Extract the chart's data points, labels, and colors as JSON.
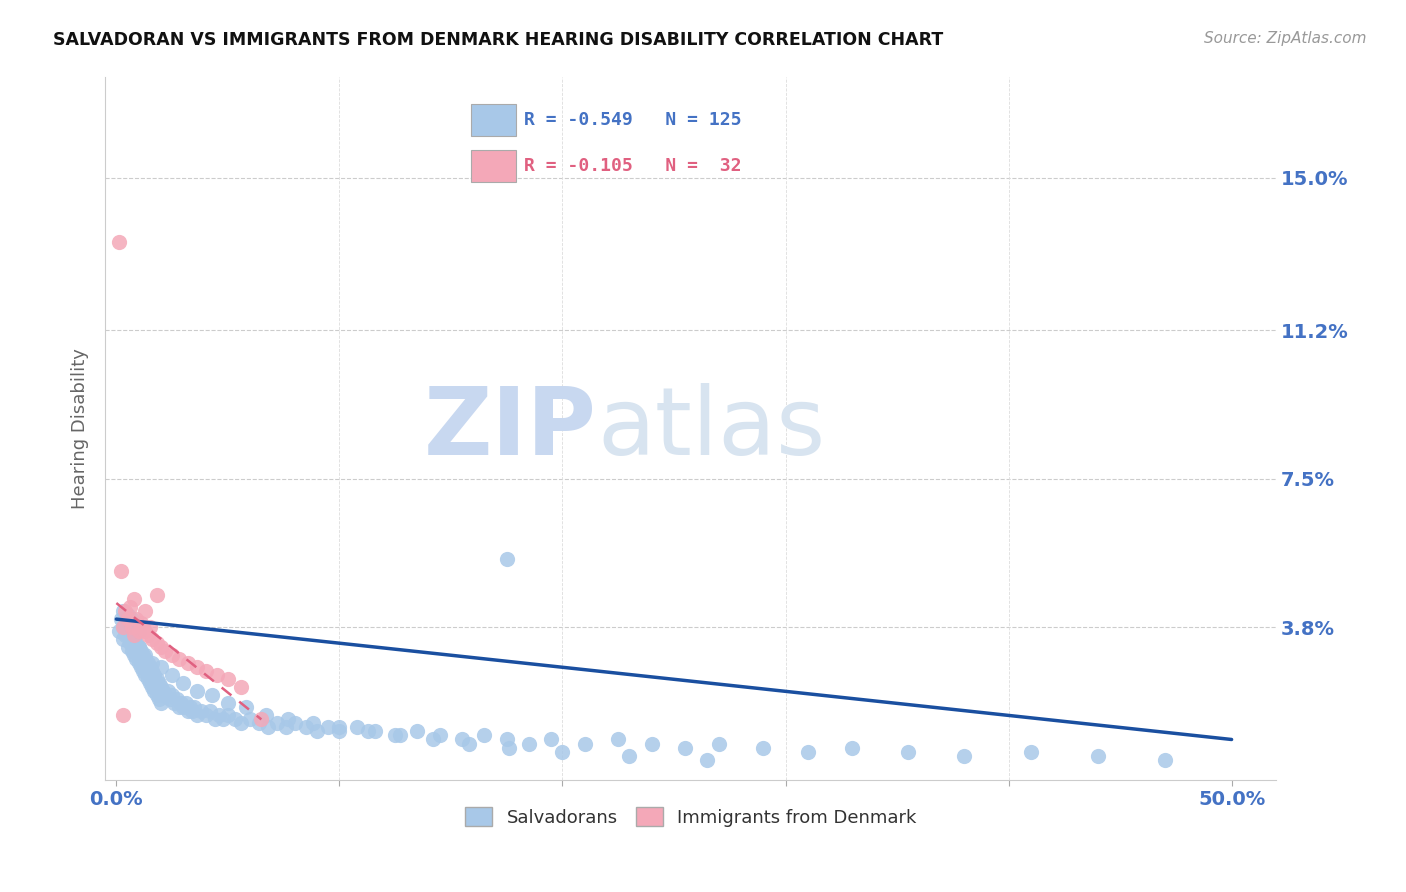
{
  "title": "SALVADORAN VS IMMIGRANTS FROM DENMARK HEARING DISABILITY CORRELATION CHART",
  "source": "Source: ZipAtlas.com",
  "ylabel": "Hearing Disability",
  "ytick_labels": [
    "15.0%",
    "11.2%",
    "7.5%",
    "3.8%"
  ],
  "ytick_values": [
    0.15,
    0.112,
    0.075,
    0.038
  ],
  "xtick_values": [
    0.0,
    0.1,
    0.2,
    0.3,
    0.4,
    0.5
  ],
  "xtick_show": [
    0.0,
    0.5
  ],
  "xlim": [
    -0.005,
    0.52
  ],
  "ylim": [
    0.0,
    0.175
  ],
  "legend_blue_r": "-0.549",
  "legend_blue_n": "125",
  "legend_pink_r": "-0.105",
  "legend_pink_n": " 32",
  "color_blue": "#A8C8E8",
  "color_pink": "#F4A8B8",
  "color_blue_line": "#1A4FA0",
  "color_pink_line": "#E06080",
  "color_axis_label": "#4472C4",
  "watermark_zip": "#C8D8F0",
  "watermark_atlas": "#D8E4F0",
  "blue_scatter_x": [
    0.001,
    0.002,
    0.003,
    0.003,
    0.004,
    0.004,
    0.005,
    0.005,
    0.005,
    0.006,
    0.006,
    0.007,
    0.007,
    0.007,
    0.008,
    0.008,
    0.008,
    0.009,
    0.009,
    0.01,
    0.01,
    0.01,
    0.011,
    0.011,
    0.012,
    0.012,
    0.013,
    0.013,
    0.014,
    0.014,
    0.015,
    0.015,
    0.016,
    0.016,
    0.017,
    0.017,
    0.018,
    0.018,
    0.019,
    0.019,
    0.02,
    0.02,
    0.021,
    0.022,
    0.023,
    0.024,
    0.025,
    0.026,
    0.027,
    0.028,
    0.029,
    0.03,
    0.031,
    0.032,
    0.033,
    0.034,
    0.035,
    0.036,
    0.038,
    0.04,
    0.042,
    0.044,
    0.046,
    0.048,
    0.05,
    0.053,
    0.056,
    0.06,
    0.064,
    0.068,
    0.072,
    0.076,
    0.08,
    0.085,
    0.09,
    0.095,
    0.1,
    0.108,
    0.116,
    0.125,
    0.135,
    0.145,
    0.155,
    0.165,
    0.175,
    0.185,
    0.195,
    0.21,
    0.225,
    0.24,
    0.255,
    0.27,
    0.29,
    0.31,
    0.33,
    0.355,
    0.38,
    0.41,
    0.44,
    0.47,
    0.003,
    0.005,
    0.007,
    0.01,
    0.013,
    0.016,
    0.02,
    0.025,
    0.03,
    0.036,
    0.043,
    0.05,
    0.058,
    0.067,
    0.077,
    0.088,
    0.1,
    0.113,
    0.127,
    0.142,
    0.158,
    0.176,
    0.2,
    0.23,
    0.265,
    0.175
  ],
  "blue_scatter_y": [
    0.037,
    0.04,
    0.035,
    0.042,
    0.036,
    0.038,
    0.033,
    0.037,
    0.041,
    0.034,
    0.038,
    0.032,
    0.036,
    0.04,
    0.031,
    0.035,
    0.038,
    0.03,
    0.034,
    0.029,
    0.033,
    0.037,
    0.028,
    0.032,
    0.027,
    0.031,
    0.026,
    0.03,
    0.025,
    0.029,
    0.024,
    0.028,
    0.023,
    0.027,
    0.022,
    0.026,
    0.021,
    0.025,
    0.02,
    0.024,
    0.019,
    0.023,
    0.022,
    0.021,
    0.022,
    0.02,
    0.021,
    0.019,
    0.02,
    0.018,
    0.019,
    0.018,
    0.019,
    0.017,
    0.018,
    0.017,
    0.018,
    0.016,
    0.017,
    0.016,
    0.017,
    0.015,
    0.016,
    0.015,
    0.016,
    0.015,
    0.014,
    0.015,
    0.014,
    0.013,
    0.014,
    0.013,
    0.014,
    0.013,
    0.012,
    0.013,
    0.012,
    0.013,
    0.012,
    0.011,
    0.012,
    0.011,
    0.01,
    0.011,
    0.01,
    0.009,
    0.01,
    0.009,
    0.01,
    0.009,
    0.008,
    0.009,
    0.008,
    0.007,
    0.008,
    0.007,
    0.006,
    0.007,
    0.006,
    0.005,
    0.038,
    0.036,
    0.034,
    0.033,
    0.031,
    0.029,
    0.028,
    0.026,
    0.024,
    0.022,
    0.021,
    0.019,
    0.018,
    0.016,
    0.015,
    0.014,
    0.013,
    0.012,
    0.011,
    0.01,
    0.009,
    0.008,
    0.007,
    0.006,
    0.005,
    0.055
  ],
  "pink_scatter_x": [
    0.001,
    0.002,
    0.003,
    0.004,
    0.005,
    0.006,
    0.007,
    0.008,
    0.009,
    0.01,
    0.011,
    0.012,
    0.013,
    0.014,
    0.015,
    0.016,
    0.018,
    0.02,
    0.022,
    0.025,
    0.028,
    0.032,
    0.036,
    0.04,
    0.045,
    0.05,
    0.056,
    0.003,
    0.008,
    0.013,
    0.018,
    0.065
  ],
  "pink_scatter_y": [
    0.134,
    0.052,
    0.038,
    0.042,
    0.04,
    0.043,
    0.038,
    0.036,
    0.04,
    0.037,
    0.039,
    0.038,
    0.037,
    0.036,
    0.038,
    0.035,
    0.034,
    0.033,
    0.032,
    0.031,
    0.03,
    0.029,
    0.028,
    0.027,
    0.026,
    0.025,
    0.023,
    0.016,
    0.045,
    0.042,
    0.046,
    0.015
  ],
  "blue_line_x": [
    0.0,
    0.5
  ],
  "blue_line_y": [
    0.04,
    0.01
  ],
  "pink_line_x": [
    0.0,
    0.065
  ],
  "pink_line_y": [
    0.044,
    0.015
  ]
}
